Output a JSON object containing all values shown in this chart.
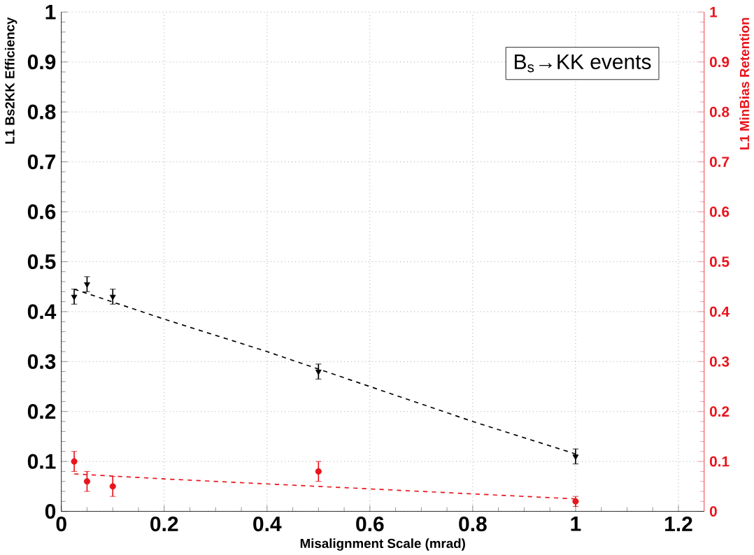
{
  "chart_data": {
    "type": "scatter",
    "xlabel": "Misalignment Scale (mrad)",
    "ylabel": "L1 Bs2KK Efficiency",
    "y2label": "L1 MinBias Retention",
    "annotations": [
      "B$_{s}$→KK events"
    ],
    "xlim": [
      0,
      1.25
    ],
    "xticks": [
      0,
      0.2,
      0.4,
      0.6,
      0.8,
      1,
      1.2
    ],
    "ylim": [
      0,
      1
    ],
    "yticks": [
      0,
      0.1,
      0.2,
      0.3,
      0.4,
      0.5,
      0.6,
      0.7,
      0.8,
      0.9,
      1
    ],
    "y2lim": [
      0,
      1
    ],
    "y2ticks": [
      0,
      0.1,
      0.2,
      0.3,
      0.4,
      0.5,
      0.6,
      0.7,
      0.8,
      0.9,
      1
    ],
    "grid": true,
    "series": [
      {
        "color": "#000000",
        "marker": "triangle",
        "x": [
          0.025,
          0.05,
          0.1,
          0.5,
          1
        ],
        "values": [
          0.43,
          0.455,
          0.43,
          0.28,
          0.11
        ],
        "errors": [
          0.015,
          0.015,
          0.015,
          0.015,
          0.015
        ]
      },
      {
        "color": "#e8141c",
        "marker": "circle",
        "axis": "y2",
        "x": [
          0.025,
          0.05,
          0.1,
          0.5,
          1
        ],
        "values": [
          0.1,
          0.06,
          0.05,
          0.08,
          0.02
        ],
        "errors": [
          0.02,
          0.02,
          0.02,
          0.02,
          0.01
        ]
      },
      {
        "type": "line",
        "color": "#000000",
        "line_style": "dashed",
        "x": [
          0.025,
          0.2,
          0.4,
          0.6,
          0.8,
          1
        ],
        "values": [
          0.445,
          0.385,
          0.32,
          0.25,
          0.18,
          0.115
        ]
      },
      {
        "type": "line",
        "color": "#e8141c",
        "line_style": "dashed",
        "axis": "y2",
        "x": [
          0.025,
          0.2,
          0.4,
          0.6,
          0.8,
          1
        ],
        "values": [
          0.075,
          0.065,
          0.055,
          0.045,
          0.035,
          0.025
        ]
      }
    ]
  }
}
